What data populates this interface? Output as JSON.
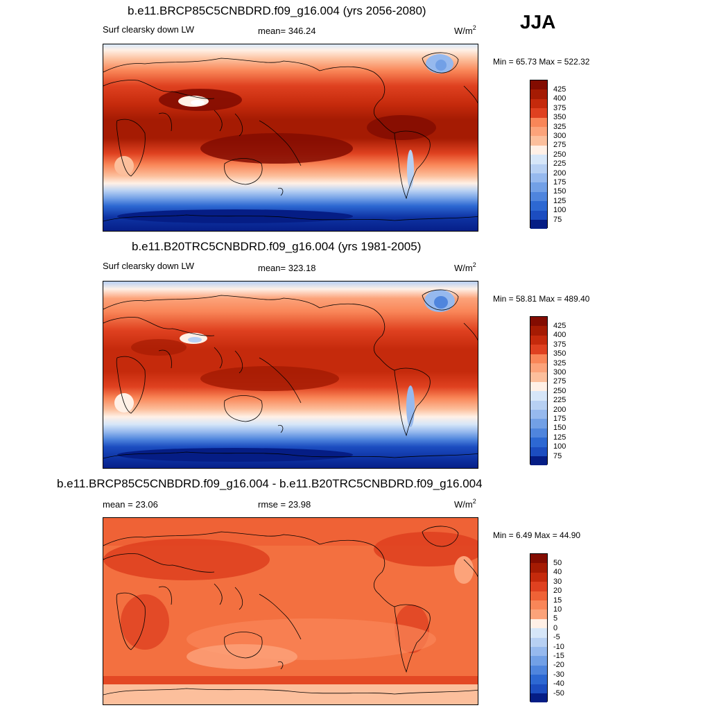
{
  "season": "JJA",
  "colors": {
    "warm": [
      "#fff0e6",
      "#fdd9c0",
      "#fcbf9c",
      "#fca37a",
      "#f98658",
      "#ef6236",
      "#df4120",
      "#c52a0c",
      "#a51b03",
      "#830c01"
    ],
    "cool": [
      "#d6e6f8",
      "#b7d0f3",
      "#96b9ee",
      "#72a0e6",
      "#4f85dd",
      "#2d68d2",
      "#1c4dc0",
      "#0e33a4",
      "#051d85"
    ],
    "land_outline": "#000000"
  },
  "panels": [
    {
      "title": "b.e11.BRCP85C5CNBDRD.f09_g16.004 (yrs 2056-2080)",
      "left_label": "Surf clearsky down LW",
      "mid_label": "mean= 346.24",
      "units_base": "W/m",
      "units_exp": "2",
      "minmax": "Min =  65.73 Max = 522.32",
      "colorbar_labels": [
        "425",
        "400",
        "375",
        "350",
        "325",
        "300",
        "275",
        "250",
        "225",
        "200",
        "175",
        "150",
        "125",
        "100",
        "75"
      ],
      "colorbar_colors": [
        "#830c01",
        "#a51b03",
        "#c52a0c",
        "#df4120",
        "#f98658",
        "#fca37a",
        "#fcbf9c",
        "#fff0e6",
        "#d6e6f8",
        "#b7d0f3",
        "#96b9ee",
        "#72a0e6",
        "#4f85dd",
        "#2d68d2",
        "#1c4dc0",
        "#051d85"
      ]
    },
    {
      "title": "b.e11.B20TRC5CNBDRD.f09_g16.004 (yrs 1981-2005)",
      "left_label": "Surf clearsky down LW",
      "mid_label": "mean= 323.18",
      "units_base": "W/m",
      "units_exp": "2",
      "minmax": "Min =  58.81 Max = 489.40",
      "colorbar_labels": [
        "425",
        "400",
        "375",
        "350",
        "325",
        "300",
        "275",
        "250",
        "225",
        "200",
        "175",
        "150",
        "125",
        "100",
        "75"
      ],
      "colorbar_colors": [
        "#830c01",
        "#a51b03",
        "#c52a0c",
        "#df4120",
        "#f98658",
        "#fca37a",
        "#fcbf9c",
        "#fff0e6",
        "#d6e6f8",
        "#b7d0f3",
        "#96b9ee",
        "#72a0e6",
        "#4f85dd",
        "#2d68d2",
        "#1c4dc0",
        "#051d85"
      ]
    },
    {
      "title": "b.e11.BRCP85C5CNBDRD.f09_g16.004 - b.e11.B20TRC5CNBDRD.f09_g16.004",
      "left_label": "mean =  23.06",
      "mid_label": "rmse =  23.98",
      "units_base": "W/m",
      "units_exp": "2",
      "minmax": "Min =   6.49 Max =  44.90",
      "colorbar_labels": [
        "50",
        "40",
        "30",
        "20",
        "15",
        "10",
        "5",
        "0",
        "-5",
        "-10",
        "-15",
        "-20",
        "-30",
        "-40",
        "-50"
      ],
      "colorbar_colors": [
        "#830c01",
        "#a51b03",
        "#c52a0c",
        "#df4120",
        "#ef6236",
        "#f98658",
        "#fca37a",
        "#fff0e6",
        "#d6e6f8",
        "#b7d0f3",
        "#96b9ee",
        "#72a0e6",
        "#4f85dd",
        "#2d68d2",
        "#1c4dc0",
        "#051d85"
      ]
    }
  ]
}
